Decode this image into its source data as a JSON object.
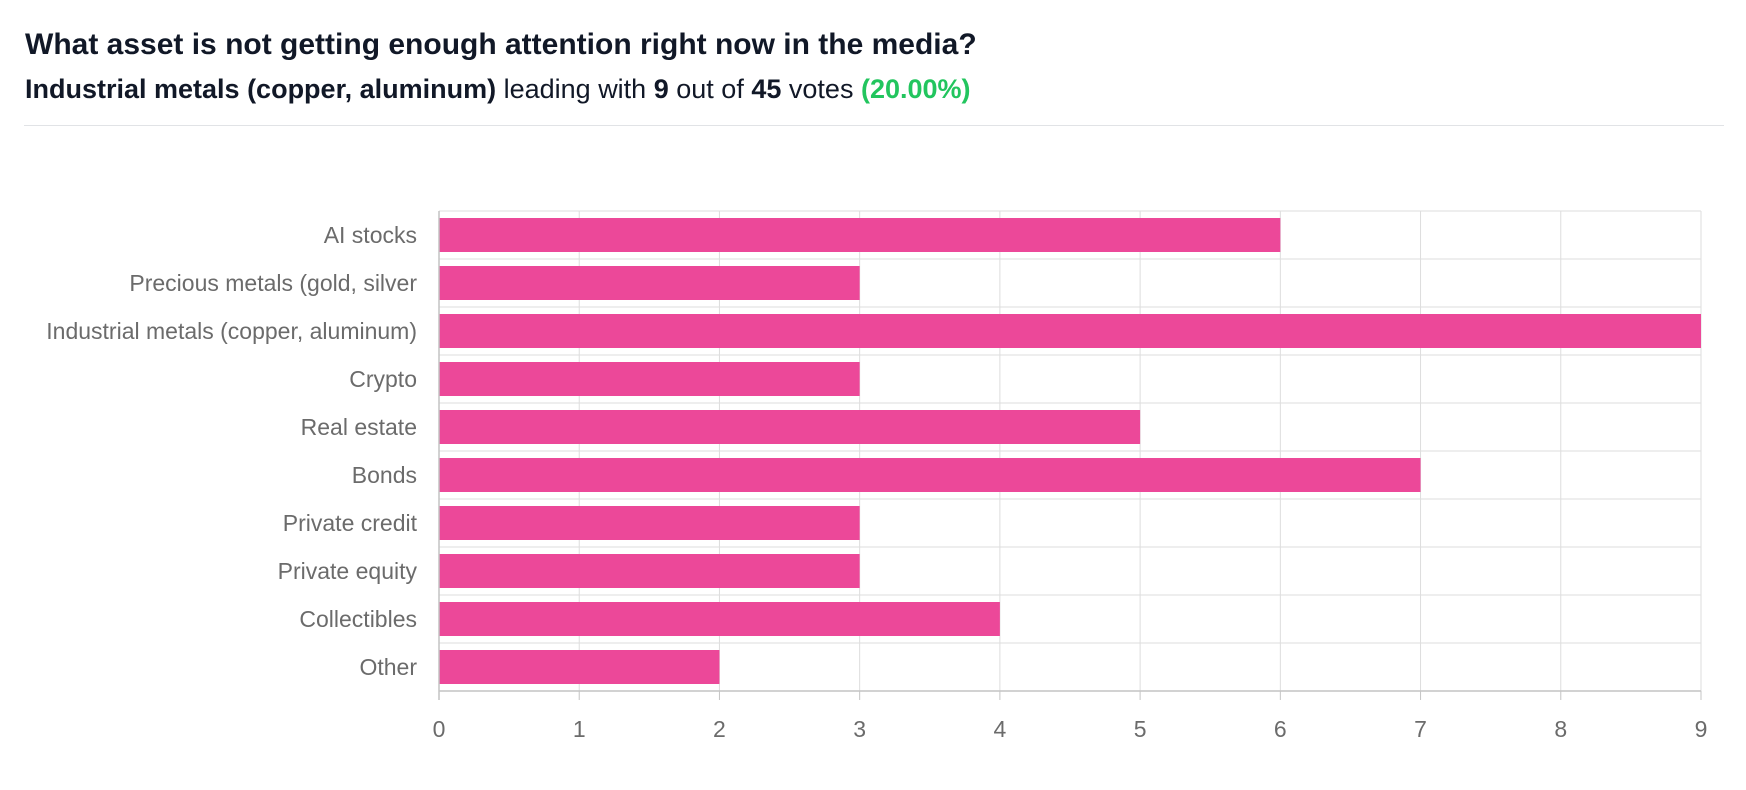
{
  "header": {
    "question": "What asset is not getting enough attention right now in the media?",
    "leader": "Industrial metals (copper, aluminum)",
    "leading_text": "leading with",
    "leader_votes": "9",
    "out_of_text": "out of",
    "total_votes": "45",
    "votes_text": "votes",
    "leader_percent": "(20.00%)"
  },
  "colors": {
    "bar": "#ec4899",
    "accent_green": "#22c55e",
    "grid": "#dddddd",
    "axis": "#c4c4c4",
    "label": "#6b6b6b"
  },
  "chart_data": {
    "type": "bar",
    "orientation": "horizontal",
    "categories": [
      "AI stocks",
      "Precious metals (gold, silver",
      "Industrial metals (copper, aluminum)",
      "Crypto",
      "Real estate",
      "Bonds",
      "Private credit",
      "Private equity",
      "Collectibles",
      "Other"
    ],
    "values": [
      6,
      3,
      9,
      3,
      5,
      7,
      3,
      3,
      4,
      2
    ],
    "xlim": [
      0,
      9
    ],
    "xticks": [
      "0",
      "1",
      "2",
      "3",
      "4",
      "5",
      "6",
      "7",
      "8",
      "9"
    ],
    "grid": true
  }
}
